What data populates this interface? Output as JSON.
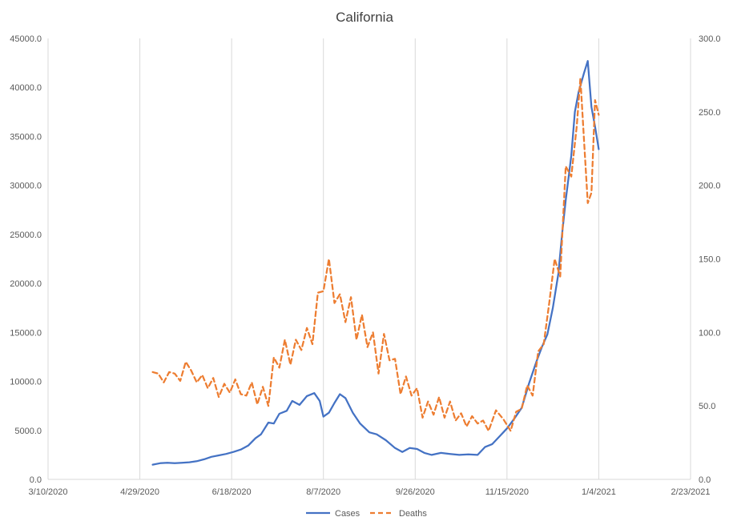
{
  "chart_data": {
    "type": "line",
    "title": "California",
    "xlabel": "",
    "ylabel": "",
    "x_axis": {
      "type": "date",
      "min": "2020-03-10",
      "max": "2021-02-23",
      "ticks": [
        "3/10/2020",
        "4/29/2020",
        "6/18/2020",
        "8/7/2020",
        "9/26/2020",
        "11/15/2020",
        "1/4/2021",
        "2/23/2021"
      ],
      "tick_dates": [
        "2020-03-10",
        "2020-04-29",
        "2020-06-18",
        "2020-08-07",
        "2020-09-26",
        "2020-11-15",
        "2021-01-04",
        "2021-02-23"
      ]
    },
    "y_left": {
      "min": 0,
      "max": 45000,
      "ticks": [
        "0.0",
        "5000.0",
        "10000.0",
        "15000.0",
        "20000.0",
        "25000.0",
        "30000.0",
        "35000.0",
        "40000.0",
        "45000.0"
      ]
    },
    "y_right": {
      "min": 0,
      "max": 300,
      "ticks": [
        "0.0",
        "50.0",
        "100.0",
        "150.0",
        "200.0",
        "250.0",
        "300.0"
      ]
    },
    "grid": {
      "vertical": true,
      "horizontal": false
    },
    "legend_position": "bottom",
    "series": [
      {
        "name": "Cases",
        "axis": "left",
        "color": "#4472C4",
        "style": "solid",
        "points": [
          [
            "2020-05-06",
            1500
          ],
          [
            "2020-05-10",
            1650
          ],
          [
            "2020-05-14",
            1700
          ],
          [
            "2020-05-18",
            1650
          ],
          [
            "2020-05-22",
            1700
          ],
          [
            "2020-05-26",
            1750
          ],
          [
            "2020-05-30",
            1850
          ],
          [
            "2020-06-03",
            2050
          ],
          [
            "2020-06-07",
            2300
          ],
          [
            "2020-06-11",
            2450
          ],
          [
            "2020-06-15",
            2600
          ],
          [
            "2020-06-19",
            2800
          ],
          [
            "2020-06-23",
            3050
          ],
          [
            "2020-06-27",
            3450
          ],
          [
            "2020-07-01",
            4200
          ],
          [
            "2020-07-04",
            4600
          ],
          [
            "2020-07-08",
            5800
          ],
          [
            "2020-07-11",
            5700
          ],
          [
            "2020-07-14",
            6700
          ],
          [
            "2020-07-18",
            7000
          ],
          [
            "2020-07-21",
            8000
          ],
          [
            "2020-07-25",
            7600
          ],
          [
            "2020-07-29",
            8500
          ],
          [
            "2020-08-02",
            8800
          ],
          [
            "2020-08-05",
            8000
          ],
          [
            "2020-08-07",
            6400
          ],
          [
            "2020-08-10",
            6800
          ],
          [
            "2020-08-13",
            7800
          ],
          [
            "2020-08-16",
            8700
          ],
          [
            "2020-08-19",
            8300
          ],
          [
            "2020-08-23",
            6800
          ],
          [
            "2020-08-27",
            5700
          ],
          [
            "2020-09-01",
            4800
          ],
          [
            "2020-09-05",
            4600
          ],
          [
            "2020-09-10",
            4000
          ],
          [
            "2020-09-15",
            3200
          ],
          [
            "2020-09-19",
            2800
          ],
          [
            "2020-09-23",
            3200
          ],
          [
            "2020-09-27",
            3100
          ],
          [
            "2020-10-01",
            2700
          ],
          [
            "2020-10-05",
            2500
          ],
          [
            "2020-10-10",
            2700
          ],
          [
            "2020-10-15",
            2600
          ],
          [
            "2020-10-20",
            2500
          ],
          [
            "2020-10-25",
            2550
          ],
          [
            "2020-10-30",
            2500
          ],
          [
            "2020-11-03",
            3300
          ],
          [
            "2020-11-07",
            3600
          ],
          [
            "2020-11-11",
            4400
          ],
          [
            "2020-11-15",
            5200
          ],
          [
            "2020-11-19",
            6200
          ],
          [
            "2020-11-23",
            7300
          ],
          [
            "2020-11-27",
            9800
          ],
          [
            "2020-12-01",
            12000
          ],
          [
            "2020-12-04",
            13500
          ],
          [
            "2020-12-07",
            14800
          ],
          [
            "2020-12-10",
            17500
          ],
          [
            "2020-12-13",
            21000
          ],
          [
            "2020-12-15",
            25000
          ],
          [
            "2020-12-17",
            28500
          ],
          [
            "2020-12-20",
            33000
          ],
          [
            "2020-12-22",
            37500
          ],
          [
            "2020-12-24",
            39500
          ],
          [
            "2020-12-27",
            41500
          ],
          [
            "2020-12-29",
            42700
          ],
          [
            "2020-12-31",
            38000
          ],
          [
            "2021-01-02",
            36000
          ],
          [
            "2021-01-04",
            33700
          ]
        ]
      },
      {
        "name": "Deaths",
        "axis": "right",
        "color": "#ED7D31",
        "style": "dashed",
        "points": [
          [
            "2020-05-06",
            73
          ],
          [
            "2020-05-09",
            72
          ],
          [
            "2020-05-12",
            66
          ],
          [
            "2020-05-15",
            73
          ],
          [
            "2020-05-18",
            72
          ],
          [
            "2020-05-21",
            67
          ],
          [
            "2020-05-24",
            80
          ],
          [
            "2020-05-27",
            74
          ],
          [
            "2020-05-30",
            66
          ],
          [
            "2020-06-02",
            71
          ],
          [
            "2020-06-05",
            62
          ],
          [
            "2020-06-08",
            69
          ],
          [
            "2020-06-11",
            56
          ],
          [
            "2020-06-14",
            65
          ],
          [
            "2020-06-17",
            59
          ],
          [
            "2020-06-20",
            68
          ],
          [
            "2020-06-23",
            58
          ],
          [
            "2020-06-26",
            57
          ],
          [
            "2020-06-29",
            66
          ],
          [
            "2020-07-02",
            51
          ],
          [
            "2020-07-05",
            63
          ],
          [
            "2020-07-08",
            50
          ],
          [
            "2020-07-11",
            83
          ],
          [
            "2020-07-14",
            76
          ],
          [
            "2020-07-17",
            95
          ],
          [
            "2020-07-20",
            78
          ],
          [
            "2020-07-23",
            95
          ],
          [
            "2020-07-26",
            88
          ],
          [
            "2020-07-29",
            103
          ],
          [
            "2020-08-01",
            92
          ],
          [
            "2020-08-04",
            127
          ],
          [
            "2020-08-07",
            128
          ],
          [
            "2020-08-10",
            150
          ],
          [
            "2020-08-13",
            120
          ],
          [
            "2020-08-16",
            126
          ],
          [
            "2020-08-19",
            107
          ],
          [
            "2020-08-22",
            124
          ],
          [
            "2020-08-25",
            95
          ],
          [
            "2020-08-28",
            112
          ],
          [
            "2020-08-31",
            90
          ],
          [
            "2020-09-03",
            100
          ],
          [
            "2020-09-06",
            72
          ],
          [
            "2020-09-09",
            99
          ],
          [
            "2020-09-12",
            81
          ],
          [
            "2020-09-15",
            82
          ],
          [
            "2020-09-18",
            58
          ],
          [
            "2020-09-21",
            70
          ],
          [
            "2020-09-24",
            57
          ],
          [
            "2020-09-27",
            62
          ],
          [
            "2020-09-30",
            42
          ],
          [
            "2020-10-03",
            53
          ],
          [
            "2020-10-06",
            44
          ],
          [
            "2020-10-09",
            56
          ],
          [
            "2020-10-12",
            42
          ],
          [
            "2020-10-15",
            53
          ],
          [
            "2020-10-18",
            40
          ],
          [
            "2020-10-21",
            45
          ],
          [
            "2020-10-24",
            36
          ],
          [
            "2020-10-27",
            43
          ],
          [
            "2020-10-30",
            38
          ],
          [
            "2020-11-02",
            40
          ],
          [
            "2020-11-05",
            33
          ],
          [
            "2020-11-09",
            47
          ],
          [
            "2020-11-13",
            41
          ],
          [
            "2020-11-17",
            33
          ],
          [
            "2020-11-20",
            46
          ],
          [
            "2020-11-23",
            48
          ],
          [
            "2020-11-26",
            64
          ],
          [
            "2020-11-29",
            57
          ],
          [
            "2020-12-02",
            87
          ],
          [
            "2020-12-05",
            92
          ],
          [
            "2020-12-08",
            120
          ],
          [
            "2020-12-11",
            150
          ],
          [
            "2020-12-14",
            138
          ],
          [
            "2020-12-17",
            213
          ],
          [
            "2020-12-20",
            206
          ],
          [
            "2020-12-23",
            240
          ],
          [
            "2020-12-25",
            273
          ],
          [
            "2020-12-27",
            230
          ],
          [
            "2020-12-29",
            188
          ],
          [
            "2020-12-31",
            195
          ],
          [
            "2021-01-02",
            258
          ],
          [
            "2021-01-04",
            248
          ]
        ]
      }
    ]
  }
}
